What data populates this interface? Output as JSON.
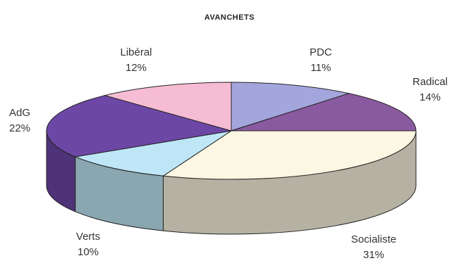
{
  "chart_data": {
    "type": "pie",
    "title": "AVANCHETS",
    "slices": [
      {
        "label": "PDC",
        "value_label": "11%",
        "value": 11,
        "color": "#a3a6dc"
      },
      {
        "label": "Radical",
        "value_label": "14%",
        "value": 14,
        "color": "#8a5aa0"
      },
      {
        "label": "Socialiste",
        "value_label": "31%",
        "value": 31,
        "color": "#fbf7e2"
      },
      {
        "label": "Verts",
        "value_label": "10%",
        "value": 10,
        "color": "#bfe6f6"
      },
      {
        "label": "AdG",
        "value_label": "22%",
        "value": 22,
        "color": "#6d47a6"
      },
      {
        "label": "Libéral",
        "value_label": "12%",
        "value": 12,
        "color": "#f6bcd3"
      }
    ]
  }
}
